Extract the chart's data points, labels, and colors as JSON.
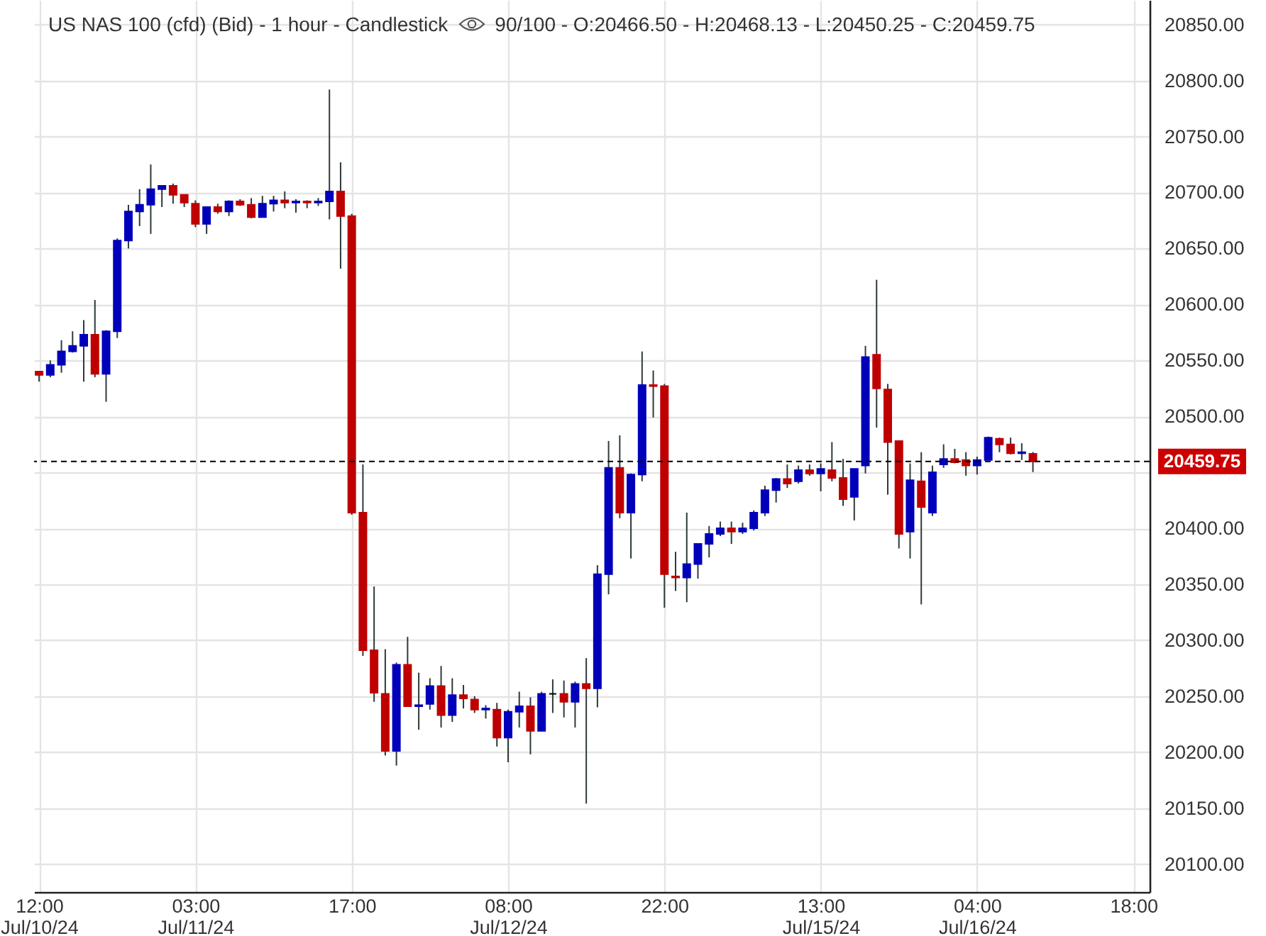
{
  "chart_data": {
    "type": "candlestick",
    "title": "US NAS 100 (cfd) (Bid) - 1 hour - Candlestick",
    "subtitle": "90/100 - O:20466.50 - H:20468.13 - L:20450.25 - C:20459.75",
    "categories": [
      "12:00 Jul/10/24",
      null,
      null,
      null,
      null,
      null,
      null,
      null,
      null,
      null,
      null,
      null,
      null,
      null,
      "03:00 Jul/11/24",
      null,
      null,
      null,
      null,
      null,
      null,
      null,
      null,
      null,
      null,
      null,
      null,
      null,
      "17:00",
      null,
      null,
      null,
      null,
      null,
      null,
      null,
      null,
      null,
      null,
      null,
      null,
      null,
      "08:00 Jul/12/24",
      null,
      null,
      null,
      null,
      null,
      null,
      null,
      null,
      null,
      null,
      null,
      null,
      null,
      "22:00",
      null,
      null,
      null,
      null,
      null,
      null,
      null,
      null,
      null,
      null,
      null,
      null,
      null,
      "13:00 Jul/15/24",
      null,
      null,
      null,
      null,
      null,
      null,
      null,
      null,
      null,
      null,
      null,
      null,
      null,
      "04:00 Jul/16/24",
      null,
      null,
      null,
      null,
      null,
      null,
      null,
      null,
      null,
      null,
      null,
      null,
      null,
      "18:00",
      null
    ],
    "ohlc": [
      [
        20540,
        20540,
        20531,
        20537
      ],
      [
        20537,
        20550,
        20535,
        20546
      ],
      [
        20546,
        20568,
        20539,
        20558
      ],
      [
        20558,
        20576,
        20557,
        20563
      ],
      [
        20563,
        20586,
        20531,
        20573
      ],
      [
        20573,
        20604,
        20535,
        20538
      ],
      [
        20538,
        20577,
        20513,
        20576
      ],
      [
        20576,
        20659,
        20570,
        20657
      ],
      [
        20657,
        20689,
        20650,
        20683
      ],
      [
        20683,
        20703,
        20670,
        20689
      ],
      [
        20689,
        20725,
        20663,
        20703
      ],
      [
        20703,
        20706,
        20687,
        20706
      ],
      [
        20706,
        20708,
        20690,
        20698
      ],
      [
        20698,
        20698,
        20687,
        20691
      ],
      [
        20690,
        20693,
        20669,
        20672
      ],
      [
        20672,
        20687,
        20663,
        20687
      ],
      [
        20687,
        20690,
        20681,
        20683
      ],
      [
        20683,
        20693,
        20679,
        20692
      ],
      [
        20692,
        20694,
        20688,
        20689
      ],
      [
        20689,
        20695,
        20677,
        20678
      ],
      [
        20678,
        20697,
        20678,
        20690
      ],
      [
        20690,
        20697,
        20683,
        20693
      ],
      [
        20693,
        20701,
        20686,
        20691
      ],
      [
        20691,
        20694,
        20682,
        20692
      ],
      [
        20692,
        20693,
        20686,
        20691
      ],
      [
        20691,
        20695,
        20688,
        20692
      ],
      [
        20692,
        20792,
        20676,
        20701
      ],
      [
        20701,
        20727,
        20632,
        20679
      ],
      [
        20679,
        20681,
        20412,
        20414
      ],
      [
        20414,
        20457,
        20286,
        20291
      ],
      [
        20291,
        20348,
        20245,
        20253
      ],
      [
        20252,
        20292,
        20197,
        20201
      ],
      [
        20201,
        20280,
        20188,
        20278
      ],
      [
        20278,
        20303,
        20241,
        20241
      ],
      [
        20241,
        20271,
        20220,
        20242
      ],
      [
        20243,
        20266,
        20238,
        20259
      ],
      [
        20259,
        20277,
        20222,
        20233
      ],
      [
        20233,
        20266,
        20227,
        20251
      ],
      [
        20251,
        20260,
        20239,
        20248
      ],
      [
        20247,
        20250,
        20235,
        20238
      ],
      [
        20238,
        20242,
        20230,
        20239
      ],
      [
        20238,
        20244,
        20205,
        20213
      ],
      [
        20213,
        20238,
        20191,
        20236
      ],
      [
        20236,
        20254,
        20222,
        20241
      ],
      [
        20241,
        20249,
        20198,
        20219
      ],
      [
        20219,
        20254,
        20219,
        20252
      ],
      [
        20252,
        20265,
        20235,
        20252
      ],
      [
        20252,
        20264,
        20231,
        20245
      ],
      [
        20245,
        20263,
        20222,
        20261
      ],
      [
        20261,
        20284,
        20154,
        20257
      ],
      [
        20257,
        20367,
        20240,
        20359
      ],
      [
        20359,
        20478,
        20341,
        20454
      ],
      [
        20454,
        20483,
        20409,
        20414
      ],
      [
        20414,
        20449,
        20373,
        20448
      ],
      [
        20448,
        20558,
        20442,
        20528
      ],
      [
        20528,
        20541,
        20499,
        20527
      ],
      [
        20527,
        20529,
        20329,
        20359
      ],
      [
        20357,
        20379,
        20344,
        20356
      ],
      [
        20356,
        20414,
        20334,
        20368
      ],
      [
        20368,
        20386,
        20355,
        20386
      ],
      [
        20386,
        20402,
        20374,
        20395
      ],
      [
        20395,
        20406,
        20393,
        20400
      ],
      [
        20400,
        20406,
        20386,
        20397
      ],
      [
        20397,
        20405,
        20395,
        20400
      ],
      [
        20400,
        20416,
        20398,
        20414
      ],
      [
        20414,
        20438,
        20411,
        20434
      ],
      [
        20434,
        20445,
        20423,
        20444
      ],
      [
        20444,
        20457,
        20436,
        20440
      ],
      [
        20442,
        20456,
        20440,
        20452
      ],
      [
        20452,
        20457,
        20447,
        20449
      ],
      [
        20449,
        20458,
        20433,
        20453
      ],
      [
        20452,
        20477,
        20442,
        20445
      ],
      [
        20445,
        20462,
        20420,
        20426
      ],
      [
        20428,
        20453,
        20407,
        20453
      ],
      [
        20456,
        20563,
        20449,
        20553
      ],
      [
        20555,
        20622,
        20490,
        20525
      ],
      [
        20524,
        20529,
        20430,
        20477
      ],
      [
        20478,
        20478,
        20382,
        20395
      ],
      [
        20397,
        20458,
        20373,
        20443
      ],
      [
        20442,
        20468,
        20332,
        20419
      ],
      [
        20414,
        20456,
        20411,
        20450
      ],
      [
        20457,
        20475,
        20454,
        20462
      ],
      [
        20462,
        20471,
        20458,
        20459
      ],
      [
        20461,
        20468,
        20447,
        20456
      ],
      [
        20456,
        20464,
        20448,
        20461
      ],
      [
        20461,
        20482,
        20461,
        20481
      ],
      [
        20480,
        20481,
        20468,
        20475
      ],
      [
        20475,
        20481,
        20466,
        20467
      ],
      [
        20467,
        20476,
        20461,
        20468
      ],
      [
        20466.5,
        20468.13,
        20450.25,
        20459.75
      ],
      null,
      null,
      null,
      null,
      null,
      null,
      null,
      null,
      null,
      null
    ],
    "colors": [
      "#bf0000",
      "#0000bb",
      "#0000bb",
      "#0000bb",
      "#0000bb",
      "#bf0000",
      "#0000bb",
      "#0000bb",
      "#0000bb",
      "#0000bb",
      "#0000bb",
      "#0000bb",
      "#bf0000",
      "#bf0000",
      "#bf0000",
      "#0000bb",
      "#bf0000",
      "#0000bb",
      "#bf0000",
      "#bf0000",
      "#0000bb",
      "#0000bb",
      "#bf0000",
      "#0000bb",
      "#bf0000",
      "#0000bb",
      "#0000bb",
      "#bf0000",
      "#bf0000",
      "#bf0000",
      "#bf0000",
      "#bf0000",
      "#0000bb",
      "#bf0000",
      "#0000bb",
      "#0000bb",
      "#bf0000",
      "#0000bb",
      "#bf0000",
      "#bf0000",
      "#0000bb",
      "#bf0000",
      "#0000bb",
      "#0000bb",
      "#bf0000",
      "#0000bb",
      "#000000",
      "#bf0000",
      "#0000bb",
      "#bf0000",
      "#0000bb",
      "#0000bb",
      "#bf0000",
      "#0000bb",
      "#0000bb",
      "#bf0000",
      "#bf0000",
      "#bf0000",
      "#0000bb",
      "#0000bb",
      "#0000bb",
      "#0000bb",
      "#bf0000",
      "#0000bb",
      "#0000bb",
      "#0000bb",
      "#0000bb",
      "#bf0000",
      "#0000bb",
      "#bf0000",
      "#0000bb",
      "#bf0000",
      "#bf0000",
      "#0000bb",
      "#0000bb",
      "#bf0000",
      "#bf0000",
      "#bf0000",
      "#0000bb",
      "#bf0000",
      "#0000bb",
      "#0000bb",
      "#bf0000",
      "#bf0000",
      "#0000bb",
      "#0000bb",
      "#bf0000",
      "#bf0000",
      "#0000bb",
      "#bf0000",
      null,
      null,
      null,
      null,
      null,
      null,
      null,
      null,
      null,
      null
    ],
    "ylim": [
      20075,
      20872
    ],
    "yticks": [
      {
        "value": 20100,
        "label": "20100.00"
      },
      {
        "value": 20150,
        "label": "20150.00"
      },
      {
        "value": 20200,
        "label": "20200.00"
      },
      {
        "value": 20250,
        "label": "20250.00"
      },
      {
        "value": 20300,
        "label": "20300.00"
      },
      {
        "value": 20350,
        "label": "20350.00"
      },
      {
        "value": 20400,
        "label": "20400.00"
      },
      {
        "value": 20450,
        "label": null
      },
      {
        "value": 20500,
        "label": "20500.00"
      },
      {
        "value": 20550,
        "label": "20550.00"
      },
      {
        "value": 20600,
        "label": "20600.00"
      },
      {
        "value": 20650,
        "label": "20650.00"
      },
      {
        "value": 20700,
        "label": "20700.00"
      },
      {
        "value": 20750,
        "label": "20750.00"
      },
      {
        "value": 20800,
        "label": "20800.00"
      },
      {
        "value": 20850,
        "label": "20850.00"
      }
    ],
    "ref_lines": [
      {
        "axis": "y",
        "value": 20459.75,
        "label": "20459.75",
        "color": "#000000",
        "line_style": "dashed"
      }
    ],
    "grid": true
  }
}
